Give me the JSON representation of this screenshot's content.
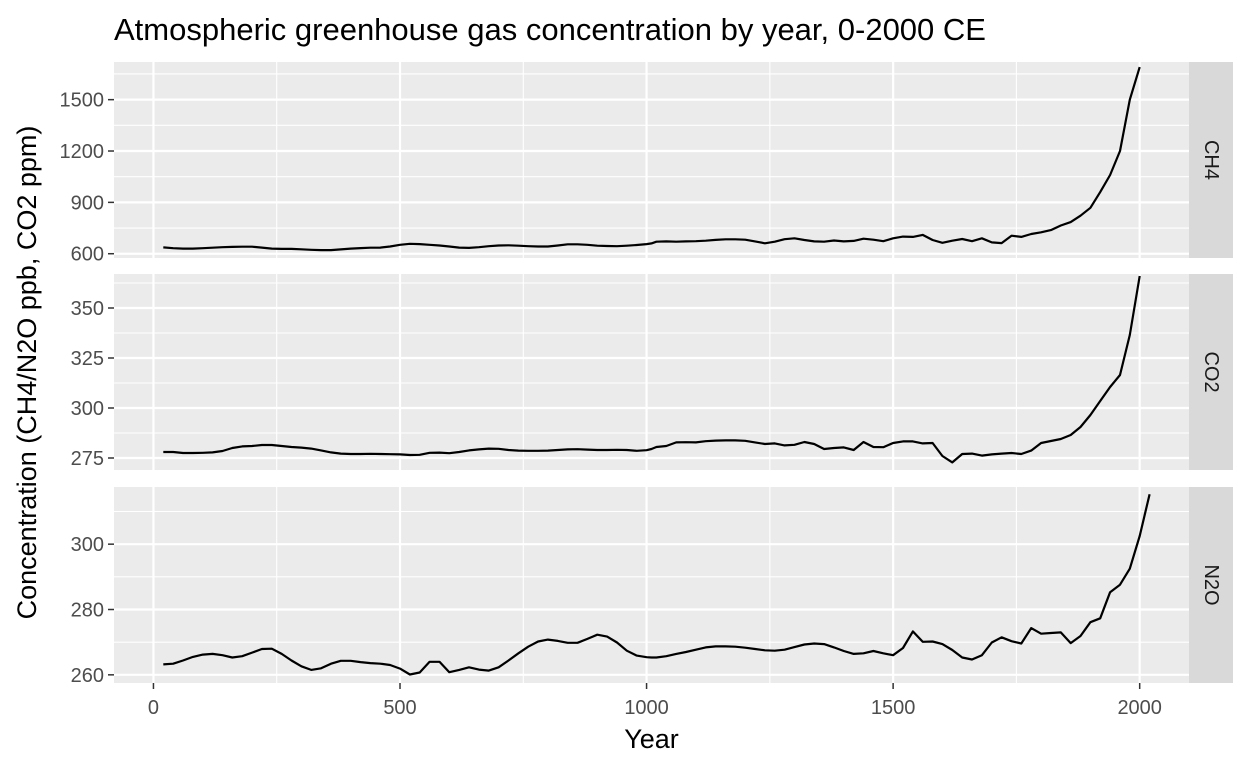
{
  "chart_data": {
    "type": "line",
    "title": "Atmospheric greenhouse gas concentration by year, 0-2000 CE",
    "xlabel": "Year",
    "ylabel": "Concentration (CH4/N2O ppb, CO2 ppm)",
    "xlim": [
      -80,
      2100
    ],
    "x_ticks": [
      0,
      500,
      1000,
      1500,
      2000
    ],
    "x_tick_labels": [
      "0",
      "500",
      "1000",
      "1500",
      "2000"
    ],
    "grid": true,
    "facets": [
      {
        "name": "CH4",
        "ylim": [
          575,
          1720
        ],
        "y_ticks": [
          600,
          900,
          1200,
          1500
        ],
        "y_tick_labels": [
          "600",
          "900",
          "1200",
          "1500"
        ],
        "points": [
          [
            20,
            637
          ],
          [
            40,
            632
          ],
          [
            60,
            630
          ],
          [
            80,
            630
          ],
          [
            100,
            632
          ],
          [
            120,
            635
          ],
          [
            140,
            638
          ],
          [
            160,
            640
          ],
          [
            180,
            641
          ],
          [
            200,
            641
          ],
          [
            220,
            636
          ],
          [
            240,
            630
          ],
          [
            260,
            628
          ],
          [
            280,
            628
          ],
          [
            300,
            626
          ],
          [
            320,
            623
          ],
          [
            340,
            621
          ],
          [
            360,
            621
          ],
          [
            380,
            625
          ],
          [
            400,
            630
          ],
          [
            420,
            633
          ],
          [
            440,
            635
          ],
          [
            460,
            636
          ],
          [
            480,
            642
          ],
          [
            500,
            652
          ],
          [
            520,
            658
          ],
          [
            540,
            656
          ],
          [
            560,
            652
          ],
          [
            580,
            648
          ],
          [
            600,
            642
          ],
          [
            620,
            636
          ],
          [
            640,
            634
          ],
          [
            660,
            638
          ],
          [
            680,
            644
          ],
          [
            700,
            648
          ],
          [
            720,
            649
          ],
          [
            740,
            647
          ],
          [
            760,
            644
          ],
          [
            780,
            642
          ],
          [
            800,
            642
          ],
          [
            820,
            648
          ],
          [
            840,
            655
          ],
          [
            860,
            655
          ],
          [
            880,
            652
          ],
          [
            900,
            647
          ],
          [
            920,
            645
          ],
          [
            940,
            644
          ],
          [
            960,
            647
          ],
          [
            980,
            651
          ],
          [
            1000,
            656
          ],
          [
            1010,
            660
          ],
          [
            1020,
            670
          ],
          [
            1040,
            672
          ],
          [
            1060,
            670
          ],
          [
            1080,
            672
          ],
          [
            1100,
            673
          ],
          [
            1120,
            676
          ],
          [
            1140,
            681
          ],
          [
            1160,
            684
          ],
          [
            1180,
            684
          ],
          [
            1200,
            682
          ],
          [
            1220,
            672
          ],
          [
            1240,
            661
          ],
          [
            1260,
            670
          ],
          [
            1280,
            685
          ],
          [
            1300,
            690
          ],
          [
            1320,
            680
          ],
          [
            1340,
            672
          ],
          [
            1360,
            670
          ],
          [
            1380,
            677
          ],
          [
            1400,
            672
          ],
          [
            1420,
            675
          ],
          [
            1440,
            688
          ],
          [
            1460,
            682
          ],
          [
            1480,
            673
          ],
          [
            1500,
            690
          ],
          [
            1520,
            700
          ],
          [
            1540,
            698
          ],
          [
            1560,
            710
          ],
          [
            1580,
            680
          ],
          [
            1600,
            664
          ],
          [
            1620,
            676
          ],
          [
            1640,
            686
          ],
          [
            1660,
            673
          ],
          [
            1680,
            690
          ],
          [
            1700,
            666
          ],
          [
            1720,
            662
          ],
          [
            1740,
            705
          ],
          [
            1760,
            698
          ],
          [
            1780,
            715
          ],
          [
            1800,
            725
          ],
          [
            1820,
            738
          ],
          [
            1840,
            765
          ],
          [
            1860,
            785
          ],
          [
            1880,
            822
          ],
          [
            1900,
            868
          ],
          [
            1920,
            960
          ],
          [
            1940,
            1060
          ],
          [
            1960,
            1200
          ],
          [
            1980,
            1500
          ],
          [
            2000,
            1690
          ]
        ]
      },
      {
        "name": "CO2",
        "ylim": [
          269,
          367
        ],
        "y_ticks": [
          275,
          300,
          325,
          350
        ],
        "y_tick_labels": [
          "275",
          "300",
          "325",
          "350"
        ],
        "points": [
          [
            20,
            278
          ],
          [
            40,
            278
          ],
          [
            60,
            277.5
          ],
          [
            80,
            277.5
          ],
          [
            100,
            277.6
          ],
          [
            120,
            277.8
          ],
          [
            140,
            278.5
          ],
          [
            160,
            280
          ],
          [
            180,
            280.8
          ],
          [
            200,
            281
          ],
          [
            220,
            281.5
          ],
          [
            240,
            281.5
          ],
          [
            260,
            281
          ],
          [
            280,
            280.5
          ],
          [
            300,
            280.2
          ],
          [
            320,
            279.7
          ],
          [
            340,
            278.8
          ],
          [
            360,
            277.8
          ],
          [
            380,
            277.2
          ],
          [
            400,
            277
          ],
          [
            420,
            277
          ],
          [
            440,
            277.1
          ],
          [
            460,
            277
          ],
          [
            480,
            276.9
          ],
          [
            500,
            276.8
          ],
          [
            520,
            276.5
          ],
          [
            540,
            276.6
          ],
          [
            560,
            277.6
          ],
          [
            580,
            277.7
          ],
          [
            600,
            277.4
          ],
          [
            620,
            278
          ],
          [
            640,
            278.8
          ],
          [
            660,
            279.3
          ],
          [
            680,
            279.7
          ],
          [
            700,
            279.6
          ],
          [
            720,
            279
          ],
          [
            740,
            278.7
          ],
          [
            760,
            278.6
          ],
          [
            780,
            278.6
          ],
          [
            800,
            278.7
          ],
          [
            820,
            279
          ],
          [
            840,
            279.3
          ],
          [
            860,
            279.4
          ],
          [
            880,
            279.2
          ],
          [
            900,
            279
          ],
          [
            920,
            279
          ],
          [
            940,
            279.1
          ],
          [
            960,
            279
          ],
          [
            980,
            278.6
          ],
          [
            1000,
            278.9
          ],
          [
            1010,
            279.5
          ],
          [
            1020,
            280.5
          ],
          [
            1040,
            281
          ],
          [
            1060,
            282.8
          ],
          [
            1080,
            282.9
          ],
          [
            1100,
            282.8
          ],
          [
            1120,
            283.4
          ],
          [
            1140,
            283.7
          ],
          [
            1160,
            283.8
          ],
          [
            1180,
            283.8
          ],
          [
            1200,
            283.6
          ],
          [
            1220,
            282.8
          ],
          [
            1240,
            282
          ],
          [
            1260,
            282.3
          ],
          [
            1280,
            281.3
          ],
          [
            1300,
            281.6
          ],
          [
            1320,
            283
          ],
          [
            1340,
            282
          ],
          [
            1360,
            279.5
          ],
          [
            1380,
            280
          ],
          [
            1400,
            280.3
          ],
          [
            1420,
            279
          ],
          [
            1440,
            283
          ],
          [
            1460,
            280.5
          ],
          [
            1480,
            280.4
          ],
          [
            1500,
            282.5
          ],
          [
            1520,
            283.3
          ],
          [
            1540,
            283.3
          ],
          [
            1560,
            282.3
          ],
          [
            1580,
            282.5
          ],
          [
            1600,
            276
          ],
          [
            1620,
            272.8
          ],
          [
            1640,
            277
          ],
          [
            1660,
            277.2
          ],
          [
            1680,
            276.2
          ],
          [
            1700,
            276.8
          ],
          [
            1720,
            277.2
          ],
          [
            1740,
            277.5
          ],
          [
            1760,
            277
          ],
          [
            1780,
            278.7
          ],
          [
            1800,
            282.5
          ],
          [
            1820,
            283.5
          ],
          [
            1840,
            284.5
          ],
          [
            1860,
            286.5
          ],
          [
            1880,
            290.5
          ],
          [
            1900,
            296.5
          ],
          [
            1920,
            303.5
          ],
          [
            1940,
            310.5
          ],
          [
            1960,
            316.5
          ],
          [
            1980,
            336.5
          ],
          [
            2000,
            366
          ]
        ]
      },
      {
        "name": "N2O",
        "ylim": [
          257.5,
          317.5
        ],
        "y_ticks": [
          260,
          280,
          300
        ],
        "y_tick_labels": [
          "260",
          "280",
          "300"
        ],
        "points": [
          [
            20,
            263.2
          ],
          [
            40,
            263.4
          ],
          [
            60,
            264.4
          ],
          [
            80,
            265.5
          ],
          [
            100,
            266.2
          ],
          [
            120,
            266.4
          ],
          [
            140,
            266
          ],
          [
            160,
            265.3
          ],
          [
            180,
            265.7
          ],
          [
            200,
            266.8
          ],
          [
            220,
            267.9
          ],
          [
            240,
            268
          ],
          [
            260,
            266.4
          ],
          [
            280,
            264.4
          ],
          [
            300,
            262.6
          ],
          [
            320,
            261.5
          ],
          [
            340,
            262
          ],
          [
            360,
            263.4
          ],
          [
            380,
            264.3
          ],
          [
            400,
            264.3
          ],
          [
            420,
            263.9
          ],
          [
            440,
            263.6
          ],
          [
            460,
            263.4
          ],
          [
            480,
            263
          ],
          [
            500,
            261.9
          ],
          [
            520,
            260.1
          ],
          [
            540,
            260.7
          ],
          [
            560,
            264
          ],
          [
            580,
            264
          ],
          [
            600,
            260.8
          ],
          [
            620,
            261.5
          ],
          [
            640,
            262.3
          ],
          [
            660,
            261.6
          ],
          [
            680,
            261.3
          ],
          [
            700,
            262.3
          ],
          [
            720,
            264.4
          ],
          [
            740,
            266.6
          ],
          [
            760,
            268.6
          ],
          [
            780,
            270.2
          ],
          [
            800,
            270.8
          ],
          [
            820,
            270.4
          ],
          [
            840,
            269.8
          ],
          [
            860,
            269.8
          ],
          [
            880,
            271
          ],
          [
            900,
            272.3
          ],
          [
            920,
            271.7
          ],
          [
            940,
            269.9
          ],
          [
            960,
            267.4
          ],
          [
            980,
            265.9
          ],
          [
            1000,
            265.4
          ],
          [
            1010,
            265.3
          ],
          [
            1020,
            265.3
          ],
          [
            1040,
            265.7
          ],
          [
            1060,
            266.4
          ],
          [
            1080,
            267
          ],
          [
            1100,
            267.7
          ],
          [
            1120,
            268.4
          ],
          [
            1140,
            268.7
          ],
          [
            1160,
            268.7
          ],
          [
            1180,
            268.6
          ],
          [
            1200,
            268.3
          ],
          [
            1220,
            267.9
          ],
          [
            1240,
            267.5
          ],
          [
            1260,
            267.4
          ],
          [
            1280,
            267.7
          ],
          [
            1300,
            268.5
          ],
          [
            1320,
            269.3
          ],
          [
            1340,
            269.6
          ],
          [
            1360,
            269.4
          ],
          [
            1380,
            268.4
          ],
          [
            1400,
            267.3
          ],
          [
            1420,
            266.4
          ],
          [
            1440,
            266.6
          ],
          [
            1460,
            267.3
          ],
          [
            1480,
            266.6
          ],
          [
            1500,
            266
          ],
          [
            1520,
            268.2
          ],
          [
            1540,
            273.3
          ],
          [
            1560,
            270.1
          ],
          [
            1580,
            270.2
          ],
          [
            1600,
            269.4
          ],
          [
            1620,
            267.6
          ],
          [
            1640,
            265.3
          ],
          [
            1660,
            264.7
          ],
          [
            1680,
            266
          ],
          [
            1700,
            269.9
          ],
          [
            1720,
            271.5
          ],
          [
            1740,
            270.3
          ],
          [
            1760,
            269.6
          ],
          [
            1780,
            274.3
          ],
          [
            1800,
            272.6
          ],
          [
            1820,
            272.8
          ],
          [
            1840,
            273
          ],
          [
            1860,
            269.7
          ],
          [
            1880,
            271.9
          ],
          [
            1900,
            276.1
          ],
          [
            1920,
            277.3
          ],
          [
            1940,
            285.3
          ],
          [
            1960,
            287.6
          ],
          [
            1980,
            292.5
          ],
          [
            2000,
            302.5
          ],
          [
            2020,
            315.3
          ]
        ]
      }
    ]
  }
}
